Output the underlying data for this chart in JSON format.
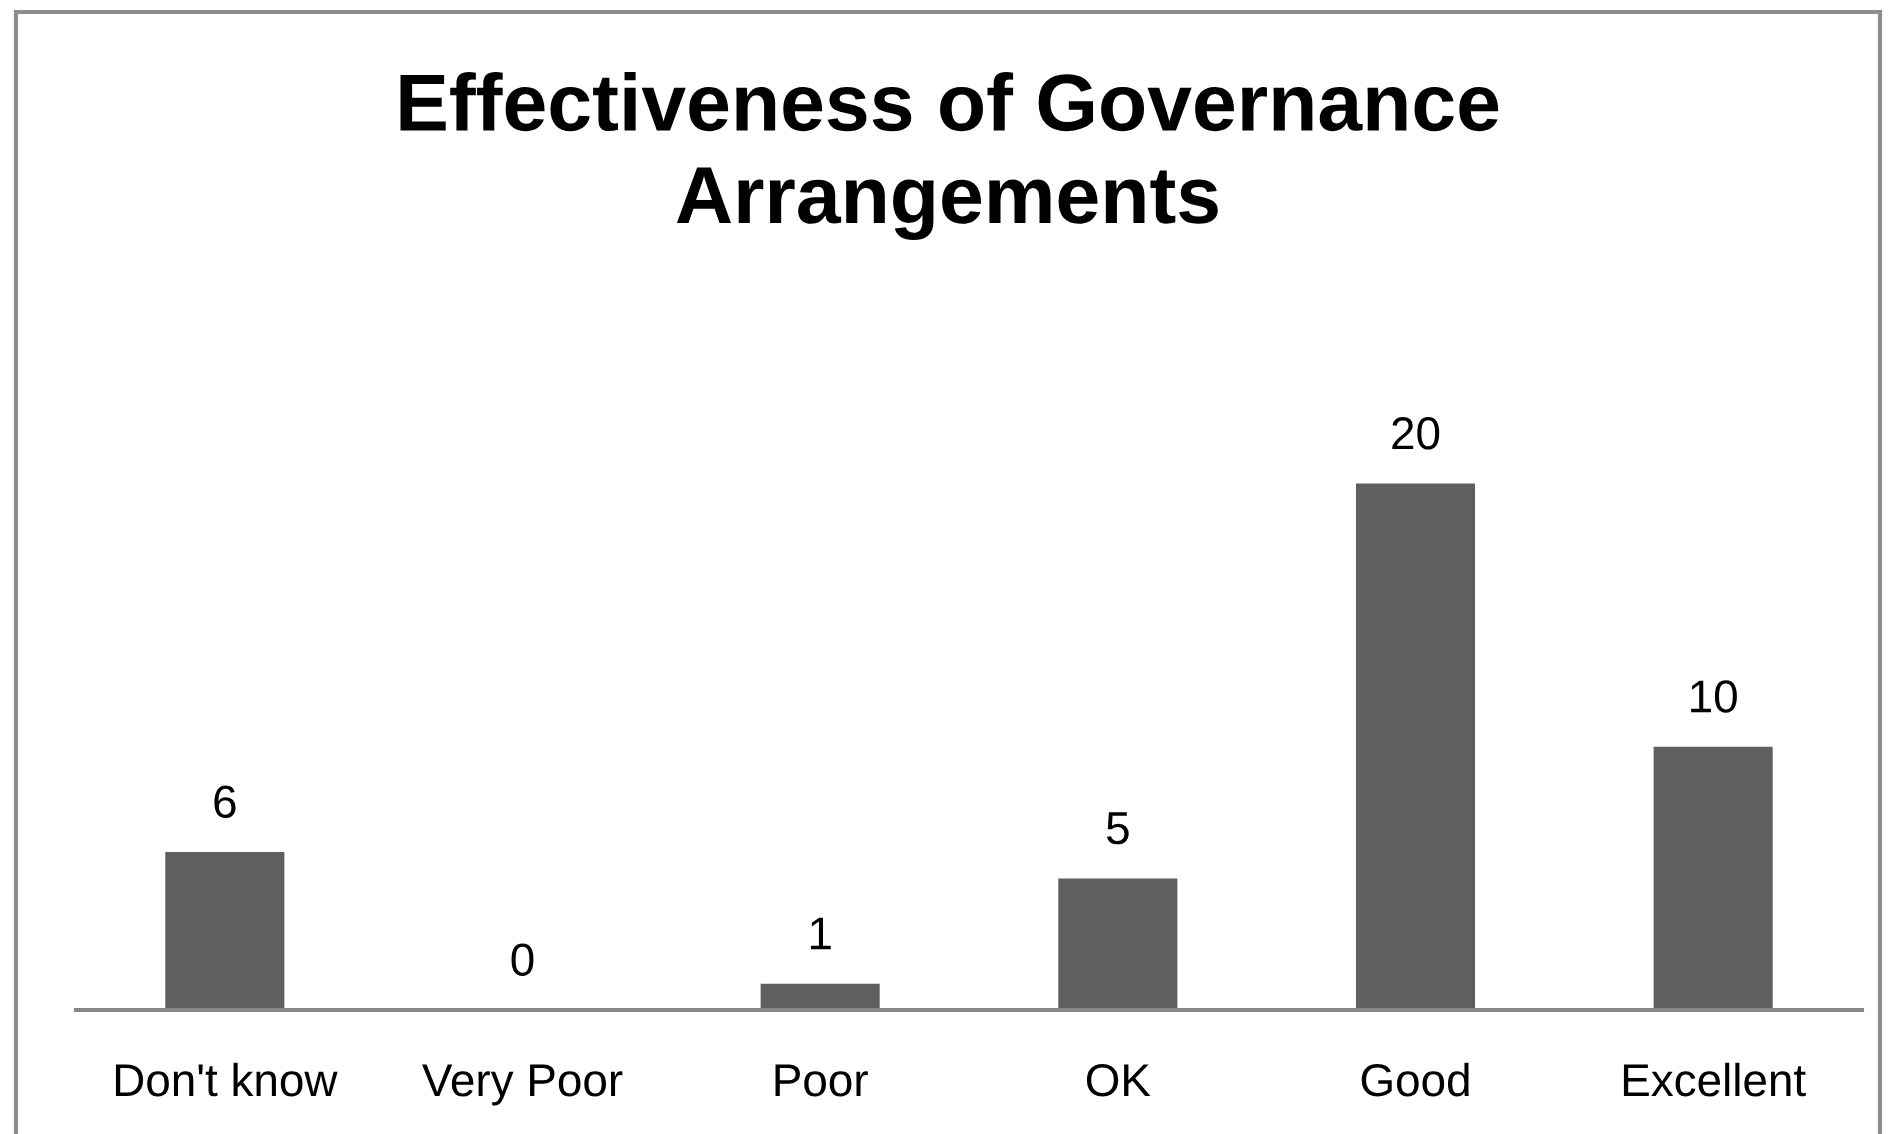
{
  "chart_data": {
    "type": "bar",
    "title": "Effectiveness of Governance Arrangements",
    "categories": [
      "Don't know",
      "Very Poor",
      "Poor",
      "OK",
      "Good",
      "Excellent"
    ],
    "values": [
      6,
      0,
      1,
      5,
      20,
      10
    ],
    "color": "#5f5f5f",
    "data_labels": true
  }
}
